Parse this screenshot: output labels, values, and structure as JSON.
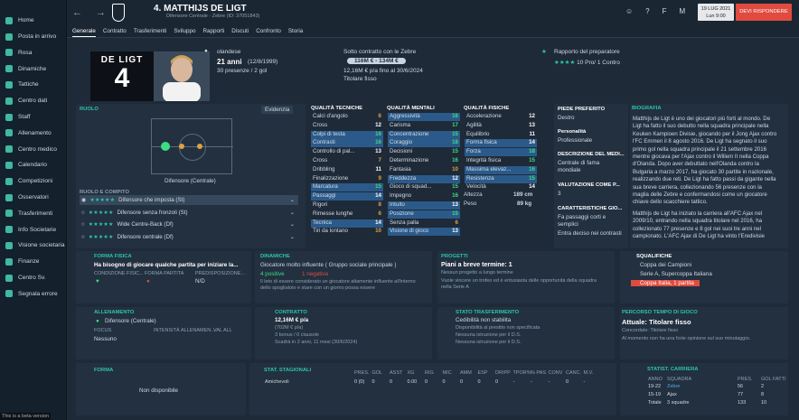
{
  "sidebar": [
    {
      "label": "Home"
    },
    {
      "label": "Posta in arrivo"
    },
    {
      "label": "Rosa"
    },
    {
      "label": "Dinamiche"
    },
    {
      "label": "Tattiche"
    },
    {
      "label": "Centro dati"
    },
    {
      "label": "Staff"
    },
    {
      "label": "Allenamento"
    },
    {
      "label": "Centro medico"
    },
    {
      "label": "Calendario"
    },
    {
      "label": "Competizioni"
    },
    {
      "label": "Osservatori"
    },
    {
      "label": "Trasferimenti"
    },
    {
      "label": "Info Societarie"
    },
    {
      "label": "Visione societaria"
    },
    {
      "label": "Finanze"
    },
    {
      "label": "Centro Sv."
    },
    {
      "label": "Segnala errore"
    }
  ],
  "beta": "This is a beta version",
  "header": {
    "title": "4. MATTHIJS DE LIGT",
    "subtitle": "Difensore Centrale - Zebre (ID: 37051843)",
    "date_day": "19 LUG 2021",
    "date_time": "Lun 9:00",
    "continue": "DEVI RISPONDERE"
  },
  "tabs": [
    "Generale",
    "Contratto",
    "Trasferimenti",
    "Sviluppo",
    "Rapporti",
    "Discuti",
    "Confronto",
    "Storia"
  ],
  "kit": {
    "name": "DE LIGT",
    "number": "4"
  },
  "info": {
    "nationality": "olandese",
    "age": "21 anni",
    "dob": "(12/8/1999)",
    "caps": "30 presenze / 2 gol",
    "contract_line": "Sotto contratto con le Zebre",
    "value": "116M € - 134M €",
    "wage": "12,16M € p/a fino al 30/6/2024",
    "status": "Titolare fisso",
    "coach_title": "Rapporto del preparatore",
    "coach_rating": "10 Pro/ 1 Contro"
  },
  "role": {
    "title": "RUOLO",
    "evidence": "Evidenzia",
    "position": "Difensore (Centrale)",
    "roles_title": "RUOLO E COMPITO",
    "roles": [
      "Difensore che imposta (St)",
      "Difensore senza fronzoli (St)",
      "Wide Centre-Back (Df)",
      "Difensore centrale (Df)"
    ]
  },
  "tech": {
    "title": "QUALITÀ TECNICHE",
    "attrs": [
      [
        "Calci d'angolo",
        "6"
      ],
      [
        "Cross",
        "12"
      ],
      [
        "Colpi di testa",
        "16"
      ],
      [
        "Contrasti",
        "16"
      ],
      [
        "Controllo di pal...",
        "13"
      ],
      [
        "Cross",
        "7"
      ],
      [
        "Dribbling",
        "11"
      ],
      [
        "Finalizzazione",
        "9"
      ],
      [
        "Marcatura",
        "15"
      ],
      [
        "Passaggi",
        "14"
      ],
      [
        "Rigori",
        "8"
      ],
      [
        "Rimesse lunghe",
        "6"
      ],
      [
        "Tecnica",
        "14"
      ],
      [
        "Tiri da lontano",
        "10"
      ]
    ]
  },
  "mental": {
    "title": "QUALITÀ MENTALI",
    "attrs": [
      [
        "Aggressività",
        "16"
      ],
      [
        "Carisma",
        "17"
      ],
      [
        "Concentrazione",
        "15"
      ],
      [
        "Coraggio",
        "18"
      ],
      [
        "Decisioni",
        "15"
      ],
      [
        "Determinazione",
        "16"
      ],
      [
        "Fantasia",
        "10"
      ],
      [
        "Freddezza",
        "12"
      ],
      [
        "Gioco di squad...",
        "15"
      ],
      [
        "Impegno",
        "16"
      ],
      [
        "Intuito",
        "13"
      ],
      [
        "Posizione",
        "15"
      ],
      [
        "Senza palla",
        "6"
      ],
      [
        "Visione di gioco",
        "13"
      ]
    ]
  },
  "physical": {
    "title": "QUALITÀ FISICHE",
    "attrs": [
      [
        "Accelerazione",
        "12"
      ],
      [
        "Agilità",
        "13"
      ],
      [
        "Equilibrio",
        "11"
      ],
      [
        "Forma fisica",
        "14"
      ],
      [
        "Forza",
        "18"
      ],
      [
        "Integrità fisica",
        "15"
      ],
      [
        "Massima elevaz...",
        "16"
      ],
      [
        "Resistenza",
        "15"
      ],
      [
        "Velocità",
        "14"
      ]
    ],
    "height_label": "Altezza",
    "height": "189 cm",
    "weight_label": "Peso",
    "weight": "89 kg"
  },
  "right": {
    "foot_title": "PIEDE PREFERITO",
    "foot": "Destro",
    "pers_title": "Personalità",
    "pers": "Professionale",
    "desc_title": "DESCRIZIONE DEL MEDI...",
    "desc": "Centrale di fama mondiale",
    "vote_title": "VALUTAZIONE COME P...",
    "vote": "3",
    "char_title": "CARATTERISTICHE GIO...",
    "char": "Fa passaggi corti e semplici",
    "char2": "Entra deciso nei contrasti"
  },
  "bio": {
    "title": "BIOGRAFIA",
    "text": "Matthijs de Ligt è uno dei giocatori più forti al mondo. De Ligt ha fatto il suo debutto nella squadra principale nella Keuken Kampioen Divisie, giocando per il Jong Ajax contro l'FC Emmen il 8 agosto 2016. De Ligt ha segnato il suo primo gol nella squadra principale il 21 settembre 2016 mentre giocava per l'Ajax contro il Willem II nella Coppa d'Olanda. Dopo aver debuttato nell'Olanda contro la Bulgaria a marzo 2017, ha giocato 30 partite in nazionale, realizzando due reti. De Ligt ha fatto passi da gigante nella sua breve carriera, collezionando 56 presenze con la maglia delle Zebre e confermandosi come un giocatore chiave dello scacchiere tattico.",
    "text2": "Matthijs de Ligt ha iniziato la carriera all'AFC Ajax nel 2009/10, entrando nella squadra titolare nel 2016, ha collezionato 77 presenze e 8 gol nei suoi tre anni nel campionato. L'AFC Ajax di De Ligt ha vinto l'Eredivisie"
  },
  "fitness": {
    "title": "FORMA FISICA",
    "text": "Ha bisogno di giocare qualche partita per iniziare la...",
    "cond": "CONDIZIONE FISIC...",
    "match": "FORMA PARTITA",
    "pred": "PREDISPOSIZIONE...",
    "pred_val": "N/D"
  },
  "dyn": {
    "title": "DINAMICHE",
    "line1": "Giocatore molto influente ( Gruppo sociale principale )",
    "pos": "4 positive",
    "neg": "1 negativa",
    "text": "Il leto di essere considerato un giocatore altamente influente all'interno dello spogliatoio e stare con un giorno possa essere"
  },
  "proj": {
    "title": "PROGETTI",
    "text": "Piani a breve termine: 1",
    "sub": "Nessun progetto a lungo termine",
    "desc": "Vuole vincere un trofeo ed è entusiasta delle opportunità della squadra nella Serie A"
  },
  "trophies": {
    "title": "SQUALIFICHE",
    "items": [
      "Coppa dei Campioni",
      "Serie A, Supercoppa Italiana",
      "Coppa Italia, 1 partita"
    ]
  },
  "train": {
    "title": "ALLENAMENTO",
    "role": "Difensore (Centrale)",
    "focus": "FOCUS",
    "focus_val": "Nessuno",
    "intensity": "INTENSITÀ ALLENAMEN...",
    "vs": "VAL ALL"
  },
  "contract": {
    "title": "CONTRATTO",
    "wage": "12,16M € p/a",
    "l1": "(702M € p/a)",
    "l2": "3 bonus / 0 clausole",
    "l3": "Scadrà in 2 anni, 11 mesi (30/6/2024)"
  },
  "transfer": {
    "title": "STATO TRASFERIMENTO",
    "l1": "Cedibilità non stabilita",
    "l2": "Disponibilità al prestito non specificata",
    "l3": "Nessuna istruzione per il D.S.",
    "l4": "Nessuna istruzione per il D.S."
  },
  "playtime": {
    "title": "PERCORSO TEMPO DI GIOCO",
    "main": "Attuale: Titolare fisso",
    "sub": "Concordato: Titolare fisso",
    "desc": "Al momento non ha una forte opinione sul suo minutaggio."
  },
  "form": {
    "title": "FORMA",
    "none": "Non disponibile"
  },
  "stats": {
    "title": "STAT. STAGIONALI",
    "cols": [
      "PRES.",
      "GOL",
      "ASST",
      "XG",
      "RIG",
      "MIC",
      "AMM",
      "ESP",
      "DRIPP",
      "TPOR%",
      "% PAS",
      "CONV",
      "CANC.",
      "M.V."
    ],
    "row": [
      "Amichevoli",
      "0 (0)",
      "0",
      "0",
      "0.00",
      "0",
      "0",
      "0",
      "0",
      "0",
      "-",
      "-",
      "-",
      "0",
      "-"
    ]
  },
  "career": {
    "title": "STATIST. CARRIERA",
    "cols": [
      "ANNO",
      "SQUADRA",
      "PRES.",
      "GOL FATTI"
    ],
    "rows": [
      [
        "19-22",
        "Zebre",
        "56",
        "2"
      ],
      [
        "15-19",
        "Ajax",
        "77",
        "8"
      ],
      [
        "Totale",
        "3 squadre",
        "133",
        "10"
      ]
    ]
  },
  "colors": {
    "accent": "#2ec4a8",
    "red": "#e04b3f"
  }
}
